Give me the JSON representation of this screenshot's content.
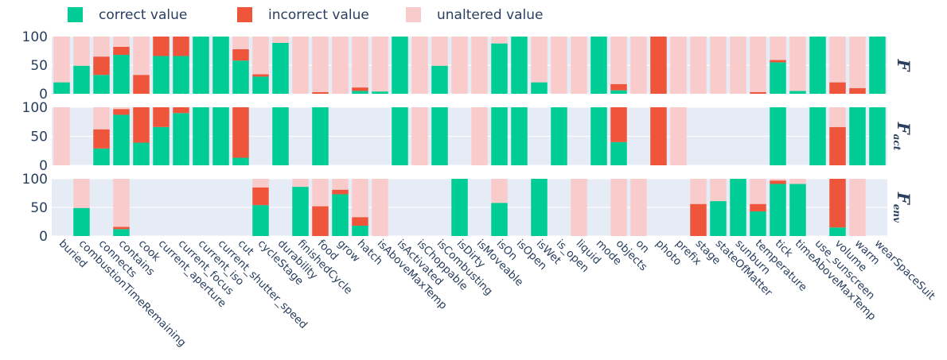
{
  "chart_data": {
    "type": "bar",
    "stacked": true,
    "legend": [
      {
        "name": "correct value",
        "color": "#00cc96"
      },
      {
        "name": "incorrect value",
        "color": "#ef553b"
      },
      {
        "name": "unaltered value",
        "color": "#f9cbcb"
      }
    ],
    "plot_background": "#e5ecf6",
    "categories": [
      "buried",
      "combustionTimeRemaining",
      "connects",
      "contains",
      "cook",
      "current_aperture",
      "current_focus",
      "current_iso",
      "current_shutter_speed",
      "cut",
      "cycleStage",
      "durability",
      "finishedCycle",
      "food",
      "grow",
      "hatch",
      "isAboveMaxTemp",
      "isActivated",
      "isChoppable",
      "isCombusting",
      "isDirty",
      "isMoveable",
      "isOn",
      "isOpen",
      "isWet",
      "is_open",
      "liquid",
      "mode",
      "objects",
      "on",
      "photo",
      "prefix",
      "stage",
      "stateOfMatter",
      "sunburn",
      "temperature",
      "tick",
      "timeAboveMaxTemp",
      "use_sunscreen",
      "volume",
      "warm",
      "wearSpaceSuit"
    ],
    "y_ticks": [
      0,
      50,
      100
    ],
    "ylim": [
      0,
      100
    ],
    "panels": [
      {
        "label_main": "F",
        "label_sub": "",
        "correct": [
          20,
          49,
          33,
          68,
          0,
          66,
          66,
          100,
          100,
          58,
          30,
          89,
          0,
          0,
          0,
          5,
          4,
          100,
          0,
          49,
          0,
          0,
          88,
          100,
          20,
          0,
          0,
          100,
          6,
          0,
          0,
          0,
          0,
          0,
          0,
          0,
          55,
          5,
          100,
          0,
          0,
          100
        ],
        "incorrect": [
          0,
          0,
          32,
          14,
          33,
          34,
          34,
          0,
          0,
          20,
          4,
          0,
          0,
          3,
          0,
          6,
          0,
          0,
          0,
          0,
          0,
          0,
          0,
          0,
          0,
          0,
          0,
          0,
          11,
          0,
          100,
          0,
          0,
          0,
          0,
          3,
          4,
          0,
          0,
          20,
          10,
          0
        ],
        "unaltered": [
          80,
          51,
          35,
          18,
          67,
          0,
          0,
          0,
          0,
          22,
          66,
          11,
          100,
          97,
          100,
          89,
          96,
          0,
          100,
          51,
          100,
          100,
          12,
          0,
          80,
          100,
          100,
          0,
          83,
          100,
          0,
          100,
          100,
          100,
          100,
          97,
          41,
          95,
          0,
          80,
          90,
          0
        ]
      },
      {
        "label_main": "F",
        "label_sub": "act",
        "correct": [
          0,
          0,
          29,
          87,
          39,
          66,
          90,
          100,
          100,
          13,
          0,
          100,
          0,
          100,
          0,
          0,
          0,
          100,
          0,
          100,
          0,
          0,
          100,
          100,
          0,
          100,
          0,
          100,
          40,
          0,
          0,
          0,
          0,
          0,
          0,
          0,
          100,
          0,
          100,
          0,
          100,
          100
        ],
        "incorrect": [
          0,
          0,
          33,
          10,
          61,
          34,
          10,
          0,
          0,
          87,
          0,
          0,
          0,
          0,
          0,
          0,
          0,
          0,
          0,
          0,
          0,
          0,
          0,
          0,
          0,
          0,
          0,
          0,
          60,
          0,
          100,
          0,
          0,
          0,
          0,
          0,
          0,
          0,
          0,
          66,
          0,
          0
        ],
        "unaltered": [
          100,
          0,
          38,
          3,
          0,
          0,
          0,
          0,
          0,
          0,
          0,
          0,
          0,
          0,
          0,
          0,
          0,
          0,
          100,
          0,
          0,
          100,
          0,
          0,
          0,
          0,
          0,
          0,
          0,
          0,
          0,
          100,
          0,
          0,
          0,
          0,
          0,
          0,
          0,
          34,
          0,
          0
        ]
      },
      {
        "label_main": "F",
        "label_sub": "env",
        "correct": [
          0,
          49,
          0,
          12,
          0,
          0,
          0,
          0,
          0,
          0,
          54,
          0,
          86,
          0,
          73,
          18,
          0,
          0,
          0,
          0,
          100,
          0,
          58,
          0,
          100,
          0,
          0,
          0,
          0,
          0,
          0,
          0,
          0,
          61,
          100,
          43,
          91,
          91,
          0,
          15,
          0,
          0
        ],
        "incorrect": [
          0,
          0,
          0,
          4,
          0,
          0,
          0,
          0,
          0,
          0,
          31,
          0,
          0,
          52,
          8,
          15,
          0,
          0,
          0,
          0,
          0,
          0,
          0,
          0,
          0,
          0,
          0,
          0,
          0,
          0,
          0,
          0,
          56,
          0,
          0,
          13,
          6,
          0,
          0,
          85,
          0,
          0
        ],
        "unaltered": [
          0,
          51,
          0,
          84,
          0,
          0,
          0,
          0,
          0,
          0,
          15,
          0,
          14,
          48,
          19,
          67,
          100,
          0,
          0,
          0,
          0,
          0,
          42,
          0,
          0,
          0,
          100,
          0,
          100,
          100,
          0,
          0,
          44,
          39,
          0,
          44,
          3,
          9,
          0,
          0,
          100,
          0
        ]
      }
    ]
  }
}
